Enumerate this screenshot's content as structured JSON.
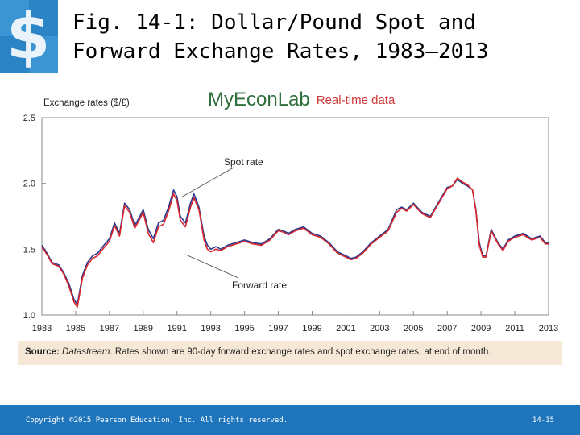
{
  "slide": {
    "title_line1": "Fig. 14-1: Dollar/Pound Spot and",
    "title_line2": "Forward Exchange Rates, 1983–2013",
    "logo_icon": "dollar-sign-logo-icon",
    "brand_main": "MyEconLab",
    "brand_sub": "Real-time data",
    "source_label": "Source:",
    "source_name": "Datastream",
    "source_rest": ". Rates shown are 90-day forward exchange rates and spot exchange rates, at end of month.",
    "copyright": "Copyright ©2015 Pearson Education, Inc. All rights reserved.",
    "page_number": "14-15"
  },
  "colors": {
    "spot": "#2b3a8f",
    "forward": "#d8262c",
    "accent_blue": "#1f75bb",
    "source_bg": "#f6e8d6",
    "brand_green": "#2f6f3c",
    "brand_red": "#cf3a3a"
  },
  "chart_data": {
    "type": "line",
    "title": "",
    "ylabel": "Exchange rates ($/£)",
    "xlabel": "",
    "xlim": [
      1983,
      2013
    ],
    "ylim": [
      1.0,
      2.5
    ],
    "xticks": [
      "1983",
      "1985",
      "1987",
      "1989",
      "1991",
      "1993",
      "1995",
      "1997",
      "1999",
      "2001",
      "2003",
      "2005",
      "2007",
      "2009",
      "2011",
      "2013"
    ],
    "yticks": [
      "1.0",
      "1.5",
      "2.0",
      "2.5"
    ],
    "grid": false,
    "annotations": [
      {
        "text": "Spot rate",
        "x": 1991.5,
        "y": 1.92
      },
      {
        "text": "Forward rate",
        "x": 1991.5,
        "y": 1.46
      }
    ],
    "series": [
      {
        "name": "Spot rate",
        "x": [
          1983.0,
          1983.3,
          1983.6,
          1984.0,
          1984.3,
          1984.6,
          1984.9,
          1985.1,
          1985.4,
          1985.7,
          1986.0,
          1986.3,
          1986.6,
          1987.0,
          1987.3,
          1987.6,
          1987.9,
          1988.2,
          1988.5,
          1988.8,
          1989.0,
          1989.3,
          1989.6,
          1989.9,
          1990.2,
          1990.5,
          1990.8,
          1991.0,
          1991.2,
          1991.5,
          1991.8,
          1992.0,
          1992.3,
          1992.6,
          1992.8,
          1993.0,
          1993.3,
          1993.6,
          1994.0,
          1994.5,
          1995.0,
          1995.5,
          1996.0,
          1996.5,
          1997.0,
          1997.3,
          1997.6,
          1998.0,
          1998.5,
          1999.0,
          1999.5,
          2000.0,
          2000.5,
          2001.0,
          2001.3,
          2001.6,
          2002.0,
          2002.5,
          2003.0,
          2003.5,
          2004.0,
          2004.3,
          2004.6,
          2005.0,
          2005.5,
          2006.0,
          2006.5,
          2007.0,
          2007.3,
          2007.6,
          2007.9,
          2008.2,
          2008.5,
          2008.7,
          2008.9,
          2009.1,
          2009.3,
          2009.6,
          2010.0,
          2010.3,
          2010.6,
          2011.0,
          2011.5,
          2012.0,
          2012.5,
          2012.8,
          2013.0
        ],
        "values": [
          1.53,
          1.47,
          1.4,
          1.38,
          1.32,
          1.24,
          1.12,
          1.08,
          1.3,
          1.4,
          1.45,
          1.47,
          1.52,
          1.58,
          1.7,
          1.62,
          1.85,
          1.8,
          1.68,
          1.75,
          1.8,
          1.65,
          1.58,
          1.7,
          1.72,
          1.82,
          1.95,
          1.9,
          1.75,
          1.7,
          1.85,
          1.92,
          1.82,
          1.6,
          1.53,
          1.5,
          1.52,
          1.5,
          1.53,
          1.55,
          1.57,
          1.55,
          1.54,
          1.58,
          1.65,
          1.64,
          1.62,
          1.65,
          1.67,
          1.62,
          1.6,
          1.55,
          1.48,
          1.45,
          1.43,
          1.44,
          1.48,
          1.55,
          1.6,
          1.65,
          1.8,
          1.82,
          1.8,
          1.85,
          1.78,
          1.75,
          1.86,
          1.97,
          1.98,
          2.03,
          2.0,
          1.98,
          1.95,
          1.8,
          1.55,
          1.45,
          1.45,
          1.65,
          1.55,
          1.5,
          1.57,
          1.6,
          1.62,
          1.58,
          1.6,
          1.55,
          1.55
        ]
      },
      {
        "name": "Forward rate",
        "x": [
          1983.0,
          1983.3,
          1983.6,
          1984.0,
          1984.3,
          1984.6,
          1984.9,
          1985.1,
          1985.4,
          1985.7,
          1986.0,
          1986.3,
          1986.6,
          1987.0,
          1987.3,
          1987.6,
          1987.9,
          1988.2,
          1988.5,
          1988.8,
          1989.0,
          1989.3,
          1989.6,
          1989.9,
          1990.2,
          1990.5,
          1990.8,
          1991.0,
          1991.2,
          1991.5,
          1991.8,
          1992.0,
          1992.3,
          1992.6,
          1992.8,
          1993.0,
          1993.3,
          1993.6,
          1994.0,
          1994.5,
          1995.0,
          1995.5,
          1996.0,
          1996.5,
          1997.0,
          1997.3,
          1997.6,
          1998.0,
          1998.5,
          1999.0,
          1999.5,
          2000.0,
          2000.5,
          2001.0,
          2001.3,
          2001.6,
          2002.0,
          2002.5,
          2003.0,
          2003.5,
          2004.0,
          2004.3,
          2004.6,
          2005.0,
          2005.5,
          2006.0,
          2006.5,
          2007.0,
          2007.3,
          2007.6,
          2007.9,
          2008.2,
          2008.5,
          2008.7,
          2008.9,
          2009.1,
          2009.3,
          2009.6,
          2010.0,
          2010.3,
          2010.6,
          2011.0,
          2011.5,
          2012.0,
          2012.5,
          2012.8,
          2013.0
        ],
        "values": [
          1.52,
          1.46,
          1.39,
          1.37,
          1.31,
          1.22,
          1.1,
          1.06,
          1.28,
          1.38,
          1.43,
          1.45,
          1.5,
          1.56,
          1.68,
          1.6,
          1.83,
          1.78,
          1.66,
          1.73,
          1.78,
          1.62,
          1.55,
          1.67,
          1.69,
          1.79,
          1.92,
          1.87,
          1.72,
          1.67,
          1.82,
          1.89,
          1.8,
          1.57,
          1.5,
          1.48,
          1.5,
          1.49,
          1.52,
          1.54,
          1.56,
          1.54,
          1.53,
          1.57,
          1.64,
          1.63,
          1.61,
          1.64,
          1.66,
          1.61,
          1.59,
          1.54,
          1.47,
          1.44,
          1.42,
          1.43,
          1.47,
          1.54,
          1.59,
          1.64,
          1.78,
          1.81,
          1.79,
          1.84,
          1.77,
          1.74,
          1.85,
          1.96,
          1.98,
          2.04,
          2.01,
          1.99,
          1.95,
          1.79,
          1.53,
          1.44,
          1.44,
          1.64,
          1.54,
          1.49,
          1.56,
          1.59,
          1.61,
          1.57,
          1.59,
          1.54,
          1.54
        ]
      }
    ]
  }
}
